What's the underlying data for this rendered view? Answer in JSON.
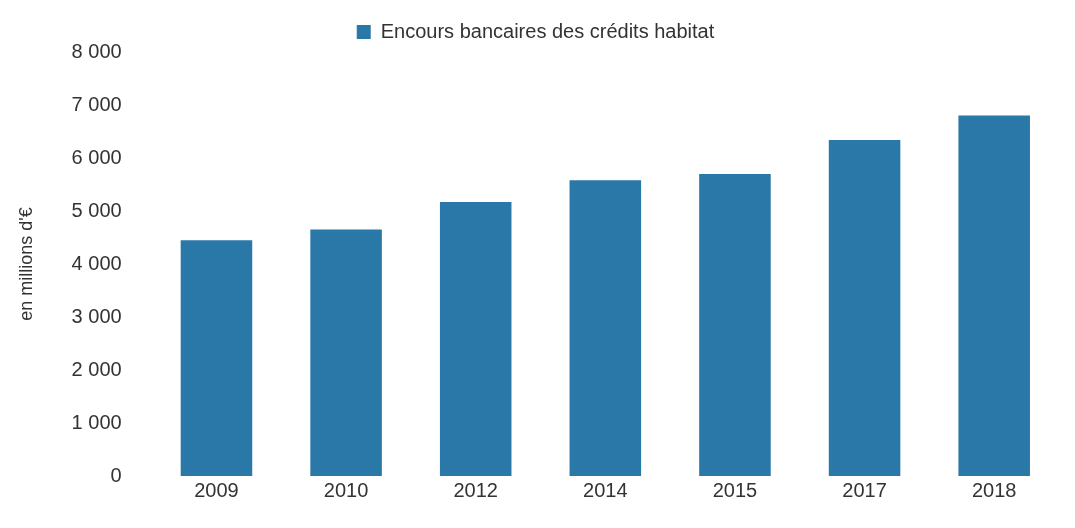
{
  "chart_data": {
    "type": "bar",
    "ylabel": "en millions d'€",
    "legend": "top",
    "categories": [
      "2009",
      "2010",
      "2012",
      "2014",
      "2015",
      "2017",
      "2018"
    ],
    "series": [
      {
        "name": "Encours bancaires des crédits habitat",
        "color": "#2a78a8",
        "values": [
          4450,
          4650,
          5170,
          5580,
          5700,
          6340,
          6800
        ]
      }
    ],
    "ylim": [
      0,
      8000
    ],
    "yticks": [
      {
        "value": 0,
        "label": "0"
      },
      {
        "value": 1000,
        "label": "1 000"
      },
      {
        "value": 2000,
        "label": "2 000"
      },
      {
        "value": 3000,
        "label": "3 000"
      },
      {
        "value": 4000,
        "label": "4 000"
      },
      {
        "value": 5000,
        "label": "5 000"
      },
      {
        "value": 6000,
        "label": "6 000"
      },
      {
        "value": 7000,
        "label": "7 000"
      },
      {
        "value": 8000,
        "label": "8 000"
      }
    ],
    "grid": false
  }
}
